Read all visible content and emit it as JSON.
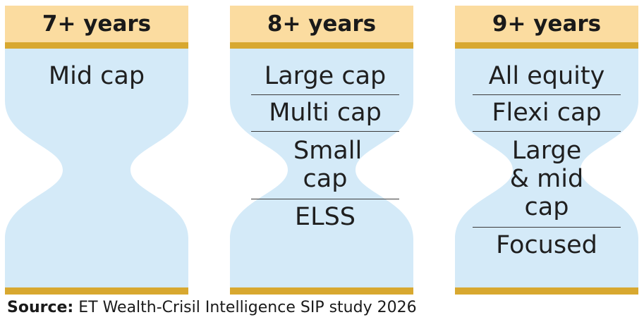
{
  "colors": {
    "header_bg": "#fbdca0",
    "bar": "#d8a830",
    "glass": "#d4eaf8"
  },
  "columns": [
    {
      "header": "7+ years",
      "items": [
        "Mid cap"
      ]
    },
    {
      "header": "8+ years",
      "items": [
        "Large cap",
        "Multi cap",
        "Small cap",
        "ELSS"
      ]
    },
    {
      "header": "9+ years",
      "items": [
        "All equity",
        "Flexi cap",
        "Large & mid cap",
        "Focused"
      ]
    }
  ],
  "source": {
    "label": "Source:",
    "text": "ET Wealth-Crisil Intelligence SIP study 2026"
  }
}
